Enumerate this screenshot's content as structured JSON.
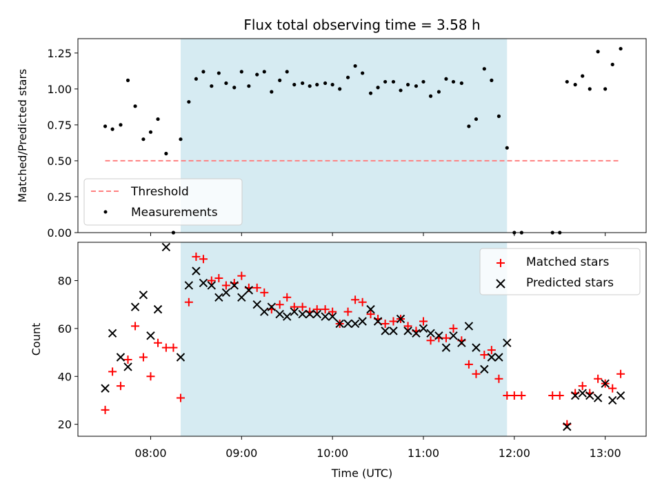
{
  "chart_data": [
    {
      "type": "scatter",
      "title": "Flux total observing time = 3.58 h",
      "ylabel": "Matched/Predicted stars",
      "xlabel": "",
      "xlim": [
        7.2,
        13.45
      ],
      "ylim": [
        0,
        1.35
      ],
      "yticks": [
        0,
        0.25,
        0.5,
        0.75,
        1.0,
        1.25
      ],
      "ytick_labels": [
        "0.00",
        "0.25",
        "0.50",
        "0.75",
        "1.00",
        "1.25"
      ],
      "xticks": [
        8,
        9,
        10,
        11,
        12,
        13
      ],
      "highlight_span": [
        8.33,
        11.92
      ],
      "threshold": {
        "label": "Threshold",
        "value": 0.5,
        "x_from": 7.5,
        "x_to": 13.17,
        "color": "#ff7f7f"
      },
      "legend": [
        "Threshold",
        "Measurements"
      ],
      "legend_loc": "lower-left",
      "series": [
        {
          "name": "Measurements",
          "color": "#000000",
          "x": [
            7.5,
            7.58,
            7.67,
            7.75,
            7.83,
            7.92,
            8.0,
            8.08,
            8.17,
            8.25,
            8.33,
            8.42,
            8.5,
            8.58,
            8.67,
            8.75,
            8.83,
            8.92,
            9.0,
            9.08,
            9.17,
            9.25,
            9.33,
            9.42,
            9.5,
            9.58,
            9.67,
            9.75,
            9.83,
            9.92,
            10.0,
            10.08,
            10.17,
            10.25,
            10.33,
            10.42,
            10.5,
            10.58,
            10.67,
            10.75,
            10.83,
            10.92,
            11.0,
            11.08,
            11.17,
            11.25,
            11.33,
            11.42,
            11.5,
            11.58,
            11.67,
            11.75,
            11.83,
            11.92,
            12.0,
            12.08,
            12.42,
            12.5,
            12.58,
            12.67,
            12.75,
            12.83,
            12.92,
            13.0,
            13.08,
            13.17
          ],
          "y": [
            0.74,
            0.72,
            0.75,
            1.06,
            0.88,
            0.65,
            0.7,
            0.79,
            0.55,
            0.0,
            0.65,
            0.91,
            1.07,
            1.12,
            1.02,
            1.11,
            1.04,
            1.01,
            1.12,
            1.02,
            1.1,
            1.12,
            0.98,
            1.06,
            1.12,
            1.03,
            1.04,
            1.02,
            1.03,
            1.04,
            1.03,
            1.0,
            1.08,
            1.16,
            1.11,
            0.97,
            1.01,
            1.05,
            1.05,
            0.99,
            1.03,
            1.02,
            1.05,
            0.95,
            0.98,
            1.07,
            1.05,
            1.04,
            0.74,
            0.79,
            1.14,
            1.06,
            0.81,
            0.59,
            0.0,
            0.0,
            0.0,
            0.0,
            1.05,
            1.03,
            1.09,
            1.0,
            1.26,
            1.0,
            1.17,
            1.28
          ]
        }
      ]
    },
    {
      "type": "scatter",
      "title": "",
      "ylabel": "Count",
      "xlabel": "Time (UTC)",
      "xlim": [
        7.2,
        13.45
      ],
      "ylim": [
        15,
        96
      ],
      "yticks": [
        20,
        40,
        60,
        80
      ],
      "ytick_labels": [
        "20",
        "40",
        "60",
        "80"
      ],
      "xticks": [
        8,
        9,
        10,
        11,
        12,
        13
      ],
      "xtick_labels": [
        "08:00",
        "09:00",
        "10:00",
        "11:00",
        "12:00",
        "13:00"
      ],
      "highlight_span": [
        8.33,
        11.92
      ],
      "legend": [
        "Matched stars",
        "Predicted stars"
      ],
      "legend_loc": "upper-right",
      "series": [
        {
          "name": "Matched stars",
          "marker": "+",
          "color": "#ff0000",
          "x": [
            7.5,
            7.58,
            7.67,
            7.75,
            7.83,
            7.92,
            8.0,
            8.08,
            8.17,
            8.25,
            8.33,
            8.42,
            8.5,
            8.58,
            8.67,
            8.75,
            8.83,
            8.92,
            9.0,
            9.08,
            9.17,
            9.25,
            9.33,
            9.42,
            9.5,
            9.58,
            9.67,
            9.75,
            9.83,
            9.92,
            10.0,
            10.08,
            10.17,
            10.25,
            10.33,
            10.42,
            10.5,
            10.58,
            10.67,
            10.75,
            10.83,
            10.92,
            11.0,
            11.08,
            11.17,
            11.25,
            11.33,
            11.42,
            11.5,
            11.58,
            11.67,
            11.75,
            11.83,
            11.92,
            12.0,
            12.08,
            12.42,
            12.5,
            12.58,
            12.67,
            12.75,
            12.83,
            12.92,
            13.0,
            13.08,
            13.17
          ],
          "y": [
            26,
            42,
            36,
            47,
            61,
            48,
            40,
            54,
            52,
            52,
            31,
            71,
            90,
            89,
            80,
            81,
            78,
            79,
            82,
            77,
            77,
            75,
            68,
            70,
            73,
            69,
            69,
            67,
            68,
            68,
            67,
            62,
            67,
            72,
            71,
            66,
            64,
            62,
            63,
            64,
            61,
            59,
            63,
            55,
            56,
            56,
            60,
            55,
            45,
            41,
            49,
            51,
            39,
            32,
            32,
            32,
            32,
            32,
            20,
            33,
            36,
            33,
            39,
            37,
            35,
            41
          ]
        },
        {
          "name": "Predicted stars",
          "marker": "x",
          "color": "#000000",
          "x": [
            7.5,
            7.58,
            7.67,
            7.75,
            7.83,
            7.92,
            8.0,
            8.08,
            8.17,
            8.33,
            8.42,
            8.5,
            8.58,
            8.67,
            8.75,
            8.83,
            8.92,
            9.0,
            9.08,
            9.17,
            9.25,
            9.33,
            9.42,
            9.5,
            9.58,
            9.67,
            9.75,
            9.83,
            9.92,
            10.0,
            10.08,
            10.17,
            10.25,
            10.33,
            10.42,
            10.5,
            10.58,
            10.67,
            10.75,
            10.83,
            10.92,
            11.0,
            11.08,
            11.17,
            11.25,
            11.33,
            11.42,
            11.5,
            11.58,
            11.67,
            11.75,
            11.83,
            11.92,
            12.58,
            12.67,
            12.75,
            12.83,
            12.92,
            13.0,
            13.08,
            13.17
          ],
          "y": [
            35,
            58,
            48,
            44,
            69,
            74,
            57,
            68,
            94,
            48,
            78,
            84,
            79,
            78,
            73,
            75,
            78,
            73,
            76,
            70,
            67,
            69,
            66,
            65,
            67,
            66,
            66,
            66,
            65,
            65,
            62,
            62,
            62,
            63,
            68,
            63,
            59,
            59,
            64,
            59,
            58,
            60,
            58,
            57,
            52,
            57,
            54,
            61,
            52,
            43,
            48,
            48,
            54,
            19,
            32,
            33,
            32,
            31,
            37,
            30,
            32
          ]
        }
      ]
    }
  ]
}
